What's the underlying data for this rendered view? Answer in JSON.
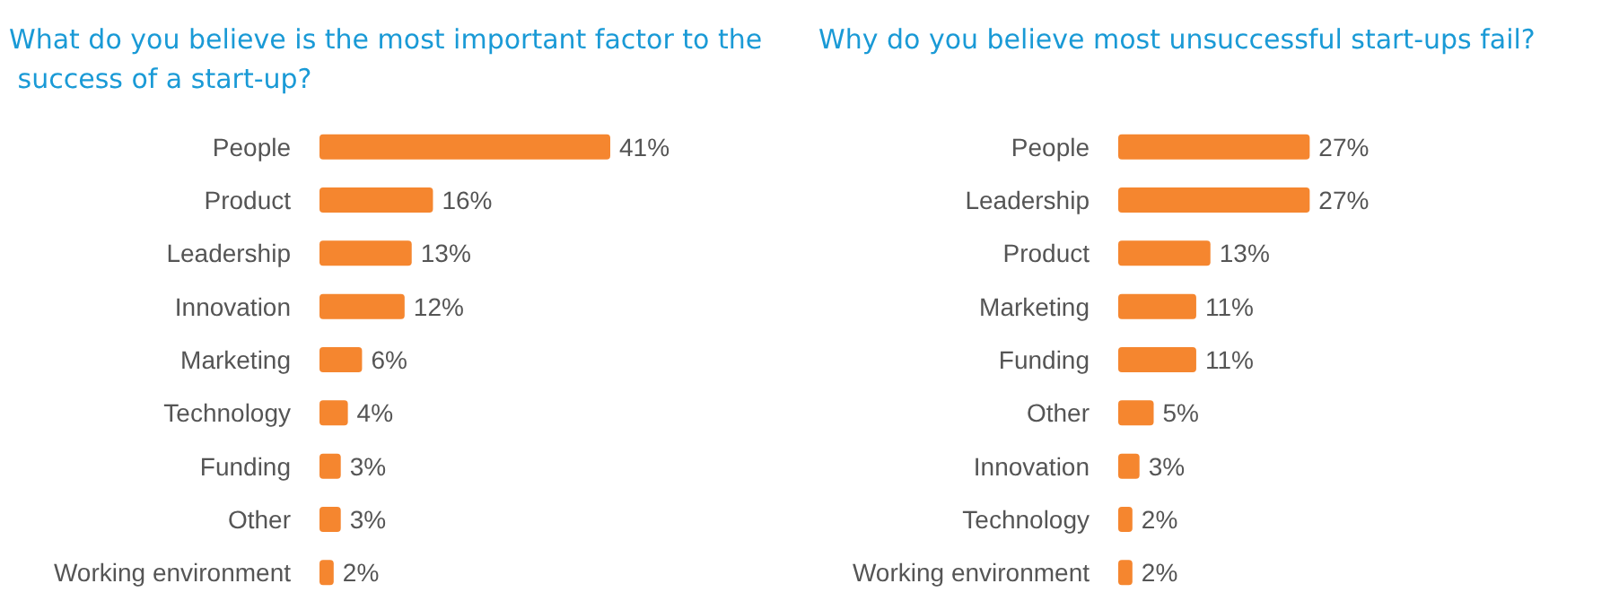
{
  "chart_data": [
    {
      "type": "bar",
      "orientation": "horizontal",
      "title": "What do you believe is the most important factor to the success of a start-up?",
      "categories": [
        "People",
        "Product",
        "Leadership",
        "Innovation",
        "Marketing",
        "Technology",
        "Funding",
        "Other",
        "Working environment"
      ],
      "values": [
        41,
        16,
        13,
        12,
        6,
        4,
        3,
        3,
        2
      ],
      "color": "#f5862f",
      "value_labels": [
        "41%",
        "16%",
        "13%",
        "12%",
        "6%",
        "4%",
        "3%",
        "3%",
        "2%"
      ]
    },
    {
      "type": "bar",
      "orientation": "horizontal",
      "title": "Why do you believe most unsuccessful start-ups fail?",
      "categories": [
        "People",
        "Leadership",
        "Product",
        "Marketing",
        "Funding",
        "Other",
        "Innovation",
        "Technology",
        "Working environment"
      ],
      "values": [
        27,
        27,
        13,
        11,
        11,
        5,
        3,
        2,
        2
      ],
      "color": "#f5862f",
      "value_labels": [
        "27%",
        "27%",
        "13%",
        "11%",
        "11%",
        "5%",
        "3%",
        "2%",
        "2%"
      ]
    }
  ]
}
